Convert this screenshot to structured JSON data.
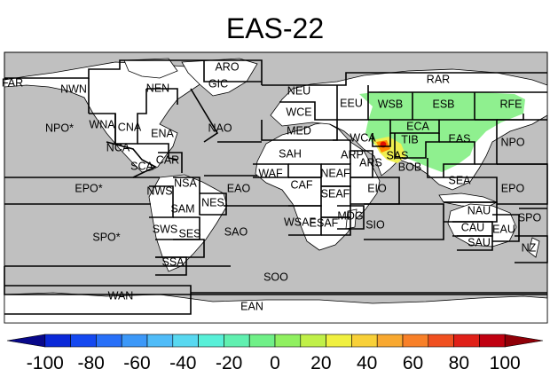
{
  "title": "EAS-22",
  "colors": {
    "ocean": "#c0c0c0",
    "land": "#ffffff",
    "highlight_green": "#8ff08f",
    "highlight_yellow": "#f0f050",
    "highlight_orange": "#ff8800",
    "highlight_red": "#e01000"
  },
  "regions": [
    {
      "label": "FAR"
    },
    {
      "label": "NWN"
    },
    {
      "label": "NEN"
    },
    {
      "label": "ARO"
    },
    {
      "label": "GIC"
    },
    {
      "label": "RAR"
    },
    {
      "label": "NEU"
    },
    {
      "label": "WCE"
    },
    {
      "label": "EEU"
    },
    {
      "label": "WSB"
    },
    {
      "label": "ESB"
    },
    {
      "label": "RFE"
    },
    {
      "label": "NPO*"
    },
    {
      "label": "WNA"
    },
    {
      "label": "CNA"
    },
    {
      "label": "ENA"
    },
    {
      "label": "NAO"
    },
    {
      "label": "MED"
    },
    {
      "label": "ECA"
    },
    {
      "label": "WCA"
    },
    {
      "label": "TIB"
    },
    {
      "label": "EAS"
    },
    {
      "label": "NPO"
    },
    {
      "label": "NCA"
    },
    {
      "label": "SCA"
    },
    {
      "label": "CAR"
    },
    {
      "label": "SAH"
    },
    {
      "label": "ARP"
    },
    {
      "label": "SAS"
    },
    {
      "label": "BOB"
    },
    {
      "label": "EPO*"
    },
    {
      "label": "NWS"
    },
    {
      "label": "NSA"
    },
    {
      "label": "EAO"
    },
    {
      "label": "WAF"
    },
    {
      "label": "CAF"
    },
    {
      "label": "NEAF"
    },
    {
      "label": "ARS"
    },
    {
      "label": "SEAF"
    },
    {
      "label": "EIO"
    },
    {
      "label": "SEA"
    },
    {
      "label": "EPO"
    },
    {
      "label": "SAM"
    },
    {
      "label": "NES"
    },
    {
      "label": "NAU"
    },
    {
      "label": "SPO*"
    },
    {
      "label": "SWS"
    },
    {
      "label": "SES"
    },
    {
      "label": "SAO"
    },
    {
      "label": "WSAF"
    },
    {
      "label": "ESAF"
    },
    {
      "label": "MDG"
    },
    {
      "label": "SIO"
    },
    {
      "label": "CAU"
    },
    {
      "label": "EAU"
    },
    {
      "label": "SPO"
    },
    {
      "label": "SAU"
    },
    {
      "label": "NZ"
    },
    {
      "label": "SSA"
    },
    {
      "label": "SOO"
    },
    {
      "label": "WAN"
    },
    {
      "label": "EAN"
    }
  ],
  "colorbar": {
    "ticks": [
      "-100",
      "-80",
      "-60",
      "-40",
      "-20",
      "0",
      "20",
      "40",
      "60",
      "80",
      "100"
    ],
    "colors": [
      "#08088a",
      "#0a28d8",
      "#1448f0",
      "#2870f8",
      "#3c98f8",
      "#50bcf8",
      "#58d8f0",
      "#58f0d8",
      "#60f0b0",
      "#70f088",
      "#90f060",
      "#c0f048",
      "#f0f040",
      "#f8d038",
      "#f8a830",
      "#f88028",
      "#f05020",
      "#e02018",
      "#c00010",
      "#900008"
    ]
  }
}
